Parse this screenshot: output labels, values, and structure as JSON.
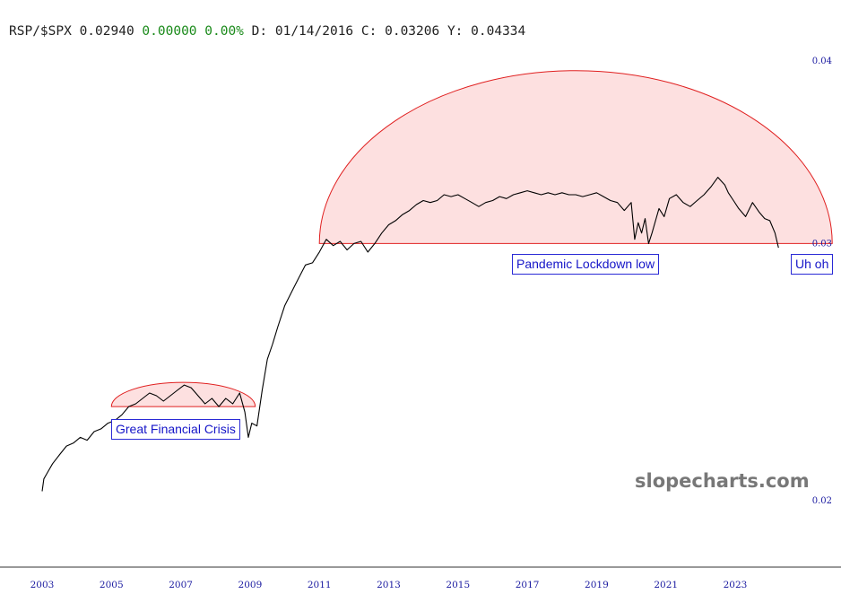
{
  "header": {
    "symbol": "RSP/$SPX",
    "last": "0.02940",
    "change": "0.00000",
    "change_pct": "0.00%",
    "date_label": "D:",
    "date": "01/14/2016",
    "close_label": "C:",
    "close": "0.03206",
    "y_label": "Y:",
    "y": "0.04334"
  },
  "watermark": "slopecharts.com",
  "annotations": {
    "gfc": "Great Financial Crisis",
    "pandemic": "Pandemic Lockdown low",
    "uhoh": "Uh oh"
  },
  "colors": {
    "line": "#000000",
    "axis_text": "#1a1aa0",
    "change": "#1a8a1a",
    "arc_stroke": "#e02020",
    "arc_fill": "#fde0e0",
    "annotation_border": "#2a2ad6"
  },
  "chart_data": {
    "type": "line",
    "xlim": [
      2002.9,
      2026.6
    ],
    "ylim": [
      0.0198,
      0.0406
    ],
    "x_ticks": [
      "2003",
      "2005",
      "2007",
      "2009",
      "2011",
      "2013",
      "2015",
      "2017",
      "2019",
      "2021",
      "2023"
    ],
    "y_ticks": [
      "0.04",
      "0.03",
      "0.02"
    ],
    "grid": false,
    "series": [
      {
        "points": [
          [
            2003.0,
            0.0203
          ],
          [
            2003.05,
            0.0207
          ],
          [
            2003.15,
            0.0209
          ],
          [
            2003.3,
            0.0212
          ],
          [
            2003.5,
            0.0215
          ],
          [
            2003.7,
            0.0218
          ],
          [
            2003.9,
            0.0219
          ],
          [
            2004.1,
            0.0221
          ],
          [
            2004.3,
            0.022
          ],
          [
            2004.5,
            0.0223
          ],
          [
            2004.7,
            0.0224
          ],
          [
            2004.9,
            0.0226
          ],
          [
            2005.1,
            0.0227
          ],
          [
            2005.3,
            0.0229
          ],
          [
            2005.5,
            0.0232
          ],
          [
            2005.7,
            0.0233
          ],
          [
            2005.9,
            0.0235
          ],
          [
            2006.1,
            0.0237
          ],
          [
            2006.3,
            0.0236
          ],
          [
            2006.5,
            0.0234
          ],
          [
            2006.7,
            0.0236
          ],
          [
            2006.9,
            0.0238
          ],
          [
            2007.1,
            0.024
          ],
          [
            2007.3,
            0.0239
          ],
          [
            2007.5,
            0.0236
          ],
          [
            2007.7,
            0.0233
          ],
          [
            2007.9,
            0.0235
          ],
          [
            2008.1,
            0.0232
          ],
          [
            2008.3,
            0.0235
          ],
          [
            2008.5,
            0.0233
          ],
          [
            2008.7,
            0.0237
          ],
          [
            2008.85,
            0.023
          ],
          [
            2008.95,
            0.0221
          ],
          [
            2009.05,
            0.0226
          ],
          [
            2009.2,
            0.0225
          ],
          [
            2009.35,
            0.0238
          ],
          [
            2009.5,
            0.025
          ],
          [
            2009.65,
            0.0256
          ],
          [
            2009.8,
            0.0263
          ],
          [
            2010.0,
            0.0272
          ],
          [
            2010.2,
            0.0278
          ],
          [
            2010.4,
            0.0284
          ],
          [
            2010.6,
            0.029
          ],
          [
            2010.8,
            0.0291
          ],
          [
            2011.0,
            0.0296
          ],
          [
            2011.2,
            0.0302
          ],
          [
            2011.4,
            0.0299
          ],
          [
            2011.6,
            0.0301
          ],
          [
            2011.8,
            0.0297
          ],
          [
            2012.0,
            0.03
          ],
          [
            2012.2,
            0.0301
          ],
          [
            2012.4,
            0.0296
          ],
          [
            2012.6,
            0.03
          ],
          [
            2012.8,
            0.0305
          ],
          [
            2013.0,
            0.0309
          ],
          [
            2013.2,
            0.0311
          ],
          [
            2013.4,
            0.0314
          ],
          [
            2013.6,
            0.0316
          ],
          [
            2013.8,
            0.0319
          ],
          [
            2014.0,
            0.0321
          ],
          [
            2014.2,
            0.032
          ],
          [
            2014.4,
            0.0321
          ],
          [
            2014.6,
            0.0324
          ],
          [
            2014.8,
            0.0323
          ],
          [
            2015.0,
            0.0324
          ],
          [
            2015.2,
            0.0322
          ],
          [
            2015.4,
            0.032
          ],
          [
            2015.6,
            0.0318
          ],
          [
            2015.8,
            0.032
          ],
          [
            2016.0,
            0.0321
          ],
          [
            2016.2,
            0.0323
          ],
          [
            2016.4,
            0.0322
          ],
          [
            2016.6,
            0.0324
          ],
          [
            2016.8,
            0.0325
          ],
          [
            2017.0,
            0.0326
          ],
          [
            2017.2,
            0.0325
          ],
          [
            2017.4,
            0.0324
          ],
          [
            2017.6,
            0.0325
          ],
          [
            2017.8,
            0.0324
          ],
          [
            2018.0,
            0.0325
          ],
          [
            2018.2,
            0.0324
          ],
          [
            2018.4,
            0.0324
          ],
          [
            2018.6,
            0.0323
          ],
          [
            2018.8,
            0.0324
          ],
          [
            2019.0,
            0.0325
          ],
          [
            2019.2,
            0.0323
          ],
          [
            2019.4,
            0.0321
          ],
          [
            2019.6,
            0.032
          ],
          [
            2019.8,
            0.0316
          ],
          [
            2020.0,
            0.032
          ],
          [
            2020.1,
            0.0302
          ],
          [
            2020.2,
            0.031
          ],
          [
            2020.3,
            0.0305
          ],
          [
            2020.4,
            0.0312
          ],
          [
            2020.5,
            0.03
          ],
          [
            2020.6,
            0.0305
          ],
          [
            2020.8,
            0.0317
          ],
          [
            2020.95,
            0.0313
          ],
          [
            2021.1,
            0.0322
          ],
          [
            2021.3,
            0.0324
          ],
          [
            2021.5,
            0.032
          ],
          [
            2021.7,
            0.0318
          ],
          [
            2021.9,
            0.0321
          ],
          [
            2022.1,
            0.0324
          ],
          [
            2022.3,
            0.0328
          ],
          [
            2022.5,
            0.0333
          ],
          [
            2022.7,
            0.0329
          ],
          [
            2022.8,
            0.0325
          ],
          [
            2022.95,
            0.0321
          ],
          [
            2023.1,
            0.0317
          ],
          [
            2023.3,
            0.0313
          ],
          [
            2023.5,
            0.032
          ],
          [
            2023.7,
            0.0315
          ],
          [
            2023.85,
            0.0312
          ],
          [
            2024.0,
            0.0311
          ],
          [
            2024.15,
            0.0305
          ],
          [
            2024.25,
            0.0298
          ]
        ]
      }
    ],
    "arcs": [
      {
        "x_start": 2005.0,
        "x_end": 2009.15,
        "base": 0.0232,
        "peak": 0.0241
      },
      {
        "x_start": 2011.0,
        "x_end": 2025.8,
        "base": 0.03,
        "peak": 0.0394
      }
    ],
    "annotations": [
      "Great Financial Crisis",
      "Pandemic Lockdown low",
      "Uh oh"
    ]
  }
}
